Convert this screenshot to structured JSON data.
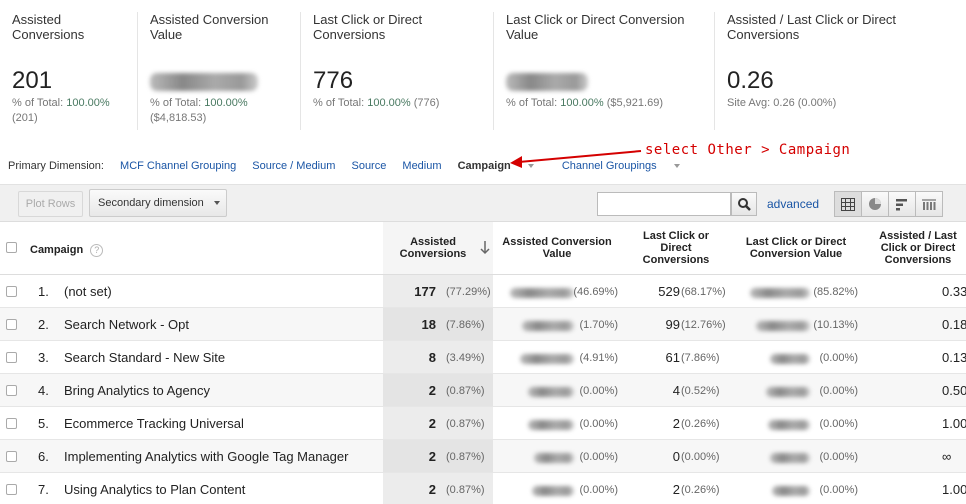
{
  "scorecards": [
    {
      "title": "Assisted Conversions",
      "value": "201",
      "sub_prefix": "% of Total: ",
      "sub_pct": "100.00%",
      "sub_extra": "(201)"
    },
    {
      "title": "Assisted Conversion Value",
      "value": "",
      "sub_prefix": "% of Total: ",
      "sub_pct": "100.00%",
      "sub_extra": "($4,818.53)"
    },
    {
      "title": "Last Click or Direct Conversions",
      "value": "776",
      "sub_prefix": "% of Total: ",
      "sub_pct": "100.00%",
      "sub_extra": "(776)"
    },
    {
      "title": "Last Click or Direct Conversion Value",
      "value": "",
      "sub_prefix": "% of Total: ",
      "sub_pct": "100.00%",
      "sub_extra": "($5,921.69)"
    },
    {
      "title": "Assisted / Last Click or Direct Conversions",
      "value": "0.26",
      "sub_prefix": "Site Avg: 0.26 (0.00%)",
      "sub_pct": "",
      "sub_extra": ""
    }
  ],
  "primary_dimension": {
    "label": "Primary Dimension:",
    "options": [
      "MCF Channel Grouping",
      "Source / Medium",
      "Source",
      "Medium",
      "Campaign",
      "Channel Groupings"
    ],
    "active": "Campaign"
  },
  "annotation": "select Other > Campaign",
  "toolbar": {
    "plot_rows": "Plot Rows",
    "secondary_dimension": "Secondary dimension",
    "search_placeholder": "",
    "advanced": "advanced"
  },
  "table": {
    "headers": {
      "campaign": "Campaign",
      "assisted": "Assisted Conversions",
      "assisted_value": "Assisted Conversion Value",
      "last_click": "Last Click or Direct Conversions",
      "last_click_value": "Last Click or Direct Conversion Value",
      "ratio": "Assisted / Last Click or Direct Conversions"
    },
    "rows": [
      {
        "idx": "1.",
        "name": "(not set)",
        "assisted": "177",
        "assisted_pct": "(77.29%)",
        "av_pct": "(46.69%)",
        "last": "529",
        "last_pct": "(68.17%)",
        "lv_pct": "(85.82%)",
        "ratio": "0.33"
      },
      {
        "idx": "2.",
        "name": "Search Network - Opt",
        "assisted": "18",
        "assisted_pct": "(7.86%)",
        "av_pct": "(1.70%)",
        "last": "99",
        "last_pct": "(12.76%)",
        "lv_pct": "(10.13%)",
        "ratio": "0.18"
      },
      {
        "idx": "3.",
        "name": "Search Standard - New Site",
        "assisted": "8",
        "assisted_pct": "(3.49%)",
        "av_pct": "(4.91%)",
        "last": "61",
        "last_pct": "(7.86%)",
        "lv_pct": "(0.00%)",
        "ratio": "0.13"
      },
      {
        "idx": "4.",
        "name": "Bring Analytics to Agency",
        "assisted": "2",
        "assisted_pct": "(0.87%)",
        "av_pct": "(0.00%)",
        "last": "4",
        "last_pct": "(0.52%)",
        "lv_pct": "(0.00%)",
        "ratio": "0.50"
      },
      {
        "idx": "5.",
        "name": "Ecommerce Tracking Universal",
        "assisted": "2",
        "assisted_pct": "(0.87%)",
        "av_pct": "(0.00%)",
        "last": "2",
        "last_pct": "(0.26%)",
        "lv_pct": "(0.00%)",
        "ratio": "1.00"
      },
      {
        "idx": "6.",
        "name": "Implementing Analytics with Google Tag Manager",
        "assisted": "2",
        "assisted_pct": "(0.87%)",
        "av_pct": "(0.00%)",
        "last": "0",
        "last_pct": "(0.00%)",
        "lv_pct": "(0.00%)",
        "ratio": "∞"
      },
      {
        "idx": "7.",
        "name": "Using Analytics to Plan Content",
        "assisted": "2",
        "assisted_pct": "(0.87%)",
        "av_pct": "(0.00%)",
        "last": "2",
        "last_pct": "(0.26%)",
        "lv_pct": "(0.00%)",
        "ratio": "1.00"
      }
    ]
  },
  "colors": {
    "link": "#1a55a5",
    "annotation": "#d40000",
    "pct_green": "#4a7a62"
  }
}
